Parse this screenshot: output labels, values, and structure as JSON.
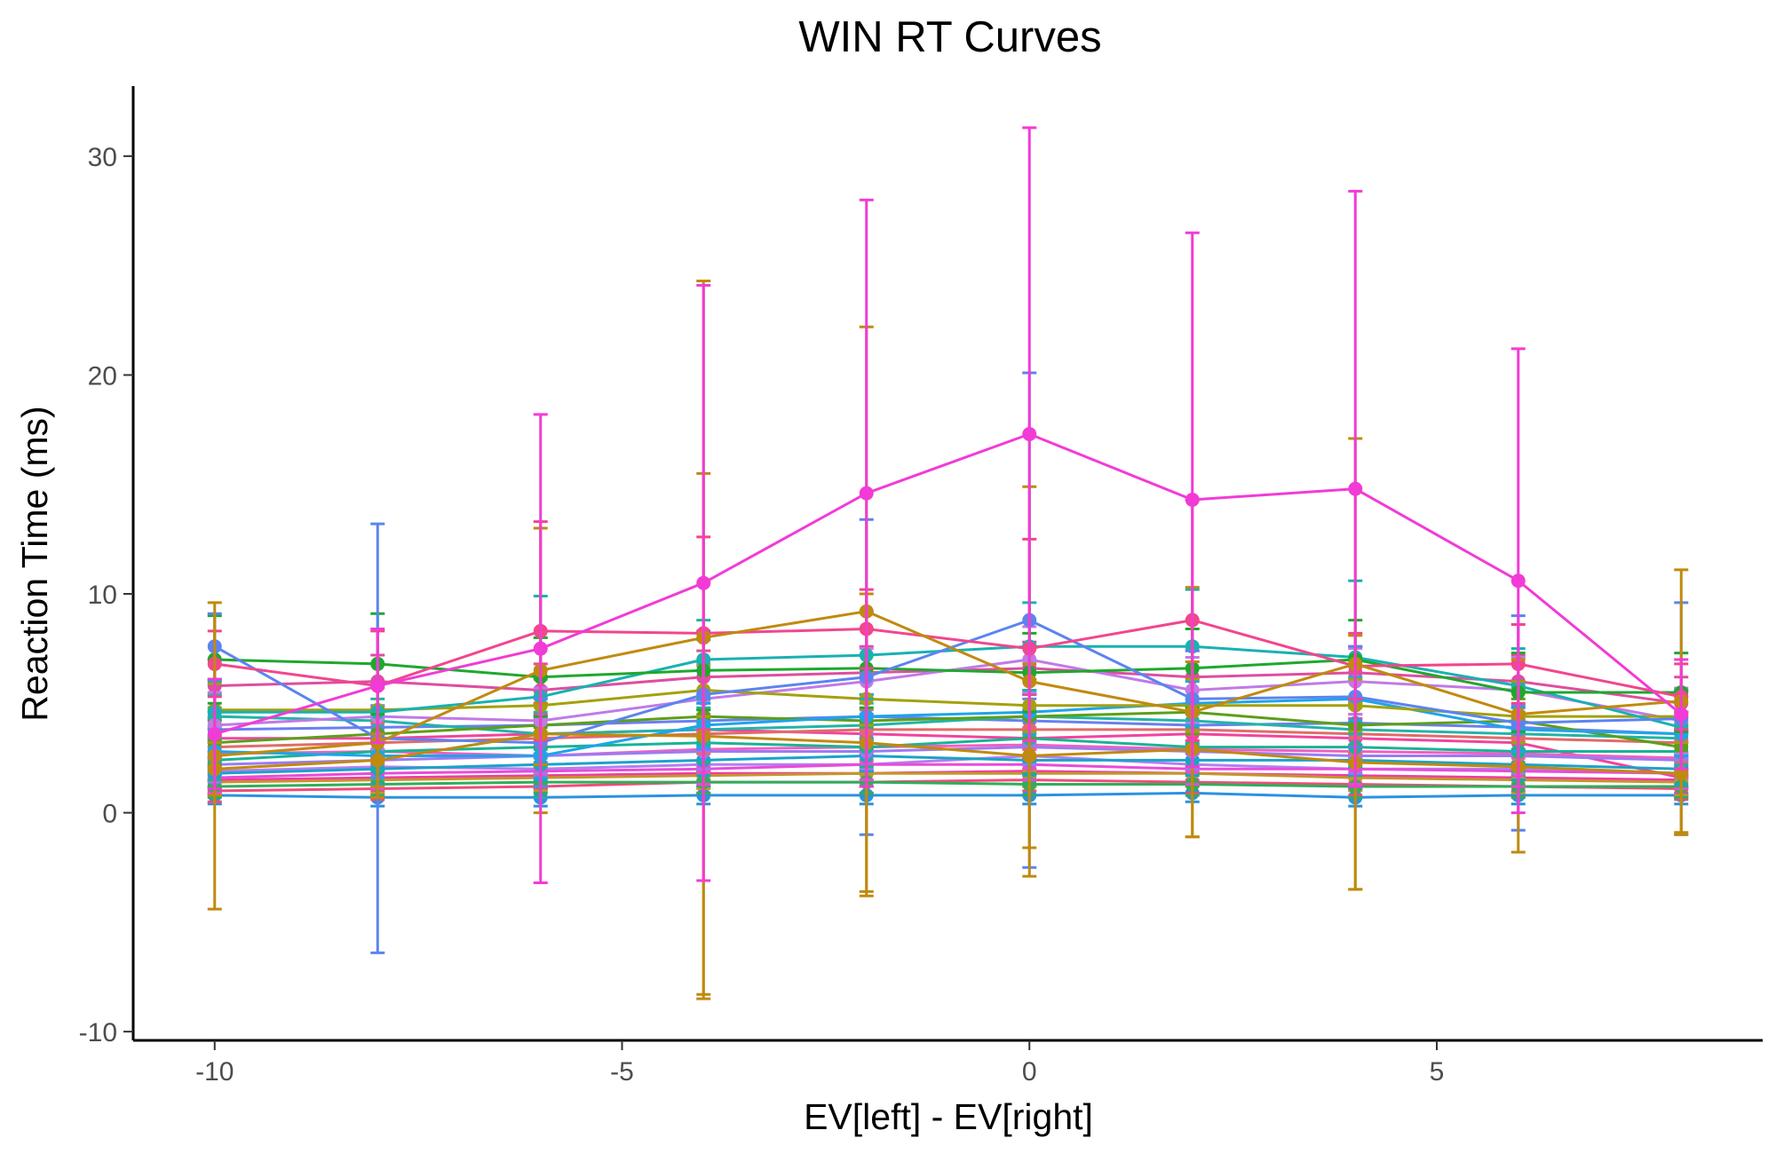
{
  "chart_data": {
    "type": "line",
    "title": "WIN RT Curves",
    "xlabel": "EV[left] - EV[right]",
    "ylabel": "Reaction Time (ms)",
    "x": [
      -10,
      -8,
      -6,
      -4,
      -2,
      0,
      2,
      4,
      6,
      8
    ],
    "xlim": [
      -11,
      9
    ],
    "ylim": [
      -10.4,
      33.2
    ],
    "xticks": [
      "-10",
      "-5",
      "0",
      "5"
    ],
    "yticks": [
      "-10",
      "0",
      "10",
      "20",
      "30"
    ],
    "grid": false,
    "legend": "none",
    "error_bars": true,
    "series": [
      {
        "color": "#F23BD6",
        "values": [
          3.6,
          5.8,
          7.5,
          10.5,
          14.6,
          17.3,
          14.3,
          14.8,
          10.6,
          4.5
        ],
        "err": [
          2.5,
          2.6,
          10.7,
          13.6,
          13.4,
          14.0,
          12.2,
          13.6,
          10.6,
          2.5
        ]
      },
      {
        "color": "#C08A0E",
        "values": [
          2.6,
          3.2,
          6.5,
          8.0,
          9.2,
          6.0,
          4.6,
          6.8,
          4.5,
          5.1
        ],
        "err": [
          7.0,
          2.5,
          6.5,
          16.3,
          13.0,
          8.9,
          5.7,
          10.3,
          2.5,
          6.0
        ]
      },
      {
        "color": "#C08A0E",
        "values": [
          2.0,
          2.4,
          3.6,
          3.5,
          3.2,
          2.6,
          2.9,
          2.3,
          2.1,
          1.8
        ],
        "err": [
          1.2,
          1.2,
          1.4,
          12.0,
          6.8,
          4.2,
          4.0,
          5.8,
          3.9,
          2.8
        ]
      },
      {
        "color": "#F2468D",
        "values": [
          6.8,
          5.8,
          8.3,
          8.2,
          8.4,
          7.5,
          8.8,
          6.7,
          6.8,
          5.3
        ],
        "err": [
          1.5,
          2.5,
          5.0,
          4.4,
          1.8,
          5.0,
          5.5,
          1.5,
          1.8,
          1.5
        ]
      },
      {
        "color": "#5B84F0",
        "values": [
          7.6,
          3.4,
          3.2,
          5.4,
          6.2,
          8.8,
          5.2,
          5.3,
          4.1,
          4.3
        ],
        "err": [
          1.5,
          9.8,
          2.0,
          2.5,
          7.2,
          11.3,
          2.2,
          2.3,
          4.9,
          5.3
        ]
      },
      {
        "color": "#1EA82D",
        "values": [
          7.0,
          6.8,
          6.2,
          6.5,
          6.6,
          6.4,
          6.6,
          7.0,
          5.5,
          5.5
        ],
        "err": [
          2.0,
          2.3,
          1.8,
          1.8,
          1.8,
          1.8,
          1.8,
          1.8,
          1.8,
          1.8
        ]
      },
      {
        "color": "#19B1B1",
        "values": [
          4.6,
          4.6,
          5.3,
          7.0,
          7.2,
          7.6,
          7.6,
          7.1,
          5.8,
          3.9
        ],
        "err": [
          1.4,
          1.3,
          4.6,
          1.8,
          2.0,
          2.0,
          2.6,
          3.5,
          1.7,
          1.7
        ]
      },
      {
        "color": "#A3A10C",
        "values": [
          4.7,
          4.7,
          4.9,
          5.6,
          5.2,
          4.9,
          4.9,
          4.9,
          4.4,
          4.4
        ],
        "err": [
          1.2,
          1.2,
          1.2,
          1.2,
          1.2,
          1.2,
          1.2,
          1.2,
          1.2,
          1.2
        ]
      },
      {
        "color": "#1DA5E8",
        "values": [
          2.8,
          2.6,
          2.6,
          4.0,
          4.4,
          4.6,
          5.0,
          5.2,
          3.8,
          3.6
        ],
        "err": [
          1.0,
          1.0,
          1.0,
          1.0,
          1.0,
          1.0,
          1.0,
          1.0,
          1.0,
          1.0
        ]
      },
      {
        "color": "#C07AE8",
        "values": [
          4.0,
          4.4,
          4.2,
          5.2,
          6.0,
          7.0,
          5.6,
          6.0,
          5.6,
          4.2
        ],
        "err": [
          1.5,
          1.5,
          1.5,
          1.5,
          1.5,
          1.5,
          1.5,
          1.5,
          1.5,
          1.5
        ]
      },
      {
        "color": "#DE4EA0",
        "values": [
          5.8,
          6.0,
          5.6,
          6.2,
          6.4,
          6.6,
          6.2,
          6.4,
          6.0,
          5.0
        ],
        "err": [
          1.2,
          1.2,
          1.2,
          1.2,
          1.2,
          1.2,
          1.2,
          1.2,
          1.2,
          1.2
        ]
      },
      {
        "color": "#5C9F18",
        "values": [
          3.2,
          3.6,
          4.0,
          4.4,
          4.2,
          4.4,
          4.6,
          4.0,
          4.2,
          3.0
        ],
        "err": [
          1.0,
          1.0,
          1.0,
          1.0,
          1.0,
          1.0,
          1.0,
          1.0,
          1.0,
          1.0
        ]
      },
      {
        "color": "#19B395",
        "values": [
          2.4,
          2.8,
          3.0,
          3.2,
          3.0,
          3.4,
          3.0,
          3.0,
          2.8,
          2.8
        ],
        "err": [
          0.9,
          0.9,
          0.9,
          0.9,
          0.9,
          0.9,
          0.9,
          0.9,
          0.9,
          0.9
        ]
      },
      {
        "color": "#E26A6A",
        "values": [
          3.0,
          3.2,
          3.4,
          3.6,
          3.8,
          3.8,
          3.8,
          3.6,
          3.4,
          3.2
        ],
        "err": [
          0.9,
          0.9,
          0.9,
          0.9,
          0.9,
          0.9,
          0.9,
          0.9,
          0.9,
          0.9
        ]
      },
      {
        "color": "#9B7BF2",
        "values": [
          2.2,
          2.4,
          2.6,
          2.8,
          2.8,
          3.0,
          2.8,
          2.6,
          2.6,
          2.4
        ],
        "err": [
          0.8,
          0.8,
          0.8,
          0.8,
          0.8,
          0.8,
          0.8,
          0.8,
          0.8,
          0.8
        ]
      },
      {
        "color": "#1AA3C9",
        "values": [
          1.8,
          2.0,
          2.2,
          2.4,
          2.6,
          2.4,
          2.4,
          2.4,
          2.2,
          2.0
        ],
        "err": [
          0.7,
          0.7,
          0.7,
          0.7,
          0.7,
          0.7,
          0.7,
          0.7,
          0.7,
          0.7
        ]
      },
      {
        "color": "#E84BD9",
        "values": [
          1.6,
          1.8,
          1.9,
          2.0,
          2.2,
          2.2,
          2.0,
          2.0,
          1.9,
          1.8
        ],
        "err": [
          0.7,
          0.7,
          0.7,
          0.7,
          0.7,
          0.7,
          0.7,
          0.7,
          0.7,
          0.7
        ]
      },
      {
        "color": "#2FAE5A",
        "values": [
          1.2,
          1.3,
          1.4,
          1.4,
          1.4,
          1.3,
          1.3,
          1.2,
          1.2,
          1.2
        ],
        "err": [
          0.5,
          0.5,
          0.5,
          0.5,
          0.5,
          0.5,
          0.5,
          0.5,
          0.5,
          0.5
        ]
      },
      {
        "color": "#C5962A",
        "values": [
          1.4,
          1.5,
          1.6,
          1.7,
          1.8,
          1.8,
          1.8,
          1.6,
          1.5,
          1.4
        ],
        "err": [
          0.6,
          0.6,
          0.6,
          0.6,
          0.6,
          0.6,
          0.6,
          0.6,
          0.6,
          0.6
        ]
      },
      {
        "color": "#F04C7A",
        "values": [
          1.0,
          1.1,
          1.2,
          1.4,
          1.4,
          1.5,
          1.4,
          1.3,
          1.2,
          1.1
        ],
        "err": [
          0.5,
          0.5,
          0.5,
          0.5,
          0.5,
          0.5,
          0.5,
          0.5,
          0.5,
          0.5
        ]
      },
      {
        "color": "#2A92E0",
        "values": [
          0.8,
          0.7,
          0.7,
          0.8,
          0.8,
          0.8,
          0.9,
          0.7,
          0.8,
          0.8
        ],
        "err": [
          0.4,
          0.4,
          0.4,
          0.4,
          0.4,
          0.4,
          0.4,
          0.4,
          0.4,
          0.4
        ]
      },
      {
        "color": "#B47EF0",
        "values": [
          1.9,
          2.1,
          2.0,
          2.2,
          2.2,
          2.6,
          2.2,
          2.0,
          2.0,
          1.8
        ],
        "err": [
          0.7,
          0.7,
          0.7,
          0.7,
          0.7,
          0.7,
          0.7,
          0.7,
          0.7,
          0.7
        ]
      },
      {
        "color": "#F25FC2",
        "values": [
          2.7,
          2.8,
          2.6,
          2.9,
          3.0,
          3.1,
          2.9,
          2.8,
          2.7,
          2.5
        ],
        "err": [
          0.8,
          0.8,
          0.8,
          0.8,
          0.8,
          0.8,
          0.8,
          0.8,
          0.8,
          0.8
        ]
      },
      {
        "color": "#22B4A8",
        "values": [
          4.4,
          4.2,
          3.6,
          3.8,
          4.0,
          4.4,
          4.2,
          3.8,
          3.6,
          3.4
        ],
        "err": [
          1.0,
          1.0,
          1.0,
          1.0,
          1.0,
          1.0,
          1.0,
          1.0,
          1.0,
          1.0
        ]
      },
      {
        "color": "#6A7FF0",
        "values": [
          3.8,
          3.9,
          4.0,
          4.2,
          4.4,
          4.2,
          4.0,
          4.1,
          3.9,
          3.6
        ],
        "err": [
          1.0,
          1.0,
          1.0,
          1.0,
          1.0,
          1.0,
          1.0,
          1.0,
          1.0,
          1.0
        ]
      },
      {
        "color": "#F03BA8",
        "values": [
          1.5,
          1.6,
          1.7,
          1.8,
          1.8,
          1.9,
          1.8,
          1.7,
          1.6,
          1.5
        ],
        "err": [
          0.6,
          0.6,
          0.6,
          0.6,
          0.6,
          0.6,
          0.6,
          0.6,
          0.6,
          0.6
        ]
      },
      {
        "color": "#F2449E",
        "values": [
          3.4,
          3.4,
          3.6,
          3.8,
          3.6,
          3.4,
          3.6,
          3.4,
          3.2,
          1.6
        ],
        "err": [
          0.9,
          0.9,
          0.9,
          0.9,
          0.9,
          0.9,
          0.9,
          0.9,
          0.9,
          0.9
        ]
      }
    ]
  }
}
